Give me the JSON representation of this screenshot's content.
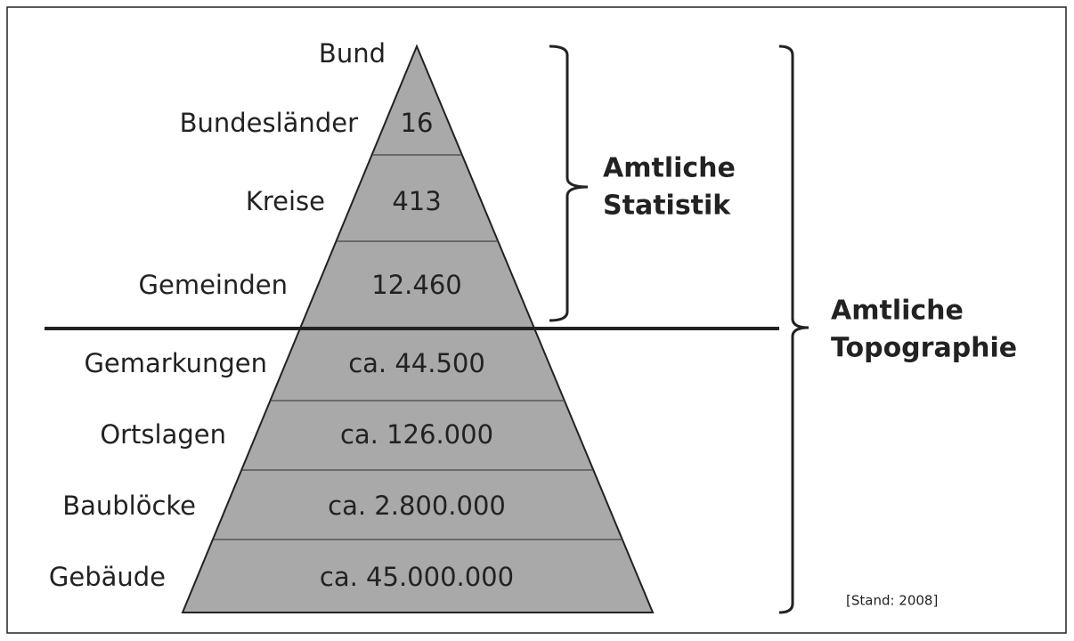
{
  "levels": [
    {
      "label": "Bund"
    },
    {
      "label": "Bundesländer",
      "count": "16"
    },
    {
      "label": "Kreise",
      "count": "413"
    },
    {
      "label": "Gemeinden",
      "count": "12.460"
    },
    {
      "label": "Gemarkungen",
      "count": "ca. 44.500"
    },
    {
      "label": "Ortslagen",
      "count": "ca. 126.000"
    },
    {
      "label": "Baublöcke",
      "count": "ca. 2.800.000"
    },
    {
      "label": "Gebäude",
      "count": "ca. 45.000.000"
    }
  ],
  "brackets": [
    {
      "label": [
        "Amtliche",
        "Statistik"
      ]
    },
    {
      "label": [
        "Amtliche",
        "Topographie"
      ]
    }
  ],
  "note": "[Stand: 2008]"
}
